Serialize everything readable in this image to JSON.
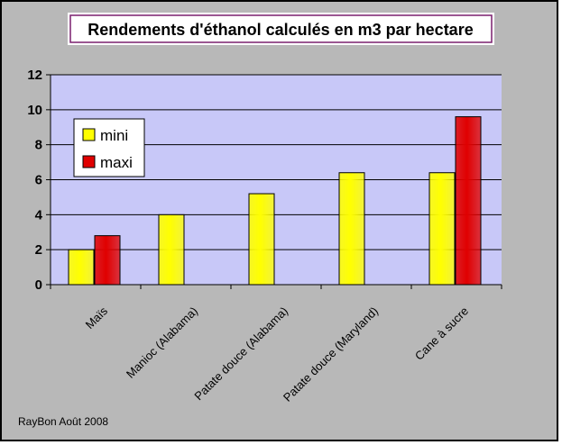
{
  "colors": {
    "chart_bg": "#b8b8b8",
    "plot_bg": "#c8c8f8",
    "title_border": "#7a1f6e",
    "mini": "#ffff00",
    "maxi": "#e00000"
  },
  "footer_text": "RayBon Août 2008",
  "chart_data": {
    "type": "bar",
    "title": "Rendements d'éthanol calculés en m3 par hectare",
    "xlabel": "",
    "ylabel": "",
    "ylim": [
      0,
      12
    ],
    "yticks": [
      0,
      2,
      4,
      6,
      8,
      10,
      12
    ],
    "grid": true,
    "legend_position": "top-left",
    "categories": [
      "Maïs",
      "Manioc (Alabama)",
      "Patate douce (Alabama)",
      "Patate douce (Maryland)",
      "Cane à sucre"
    ],
    "series": [
      {
        "name": "mini",
        "values": [
          2,
          4,
          5.2,
          6.4,
          6.4
        ]
      },
      {
        "name": "maxi",
        "values": [
          2.8,
          null,
          null,
          null,
          9.6
        ]
      }
    ]
  }
}
